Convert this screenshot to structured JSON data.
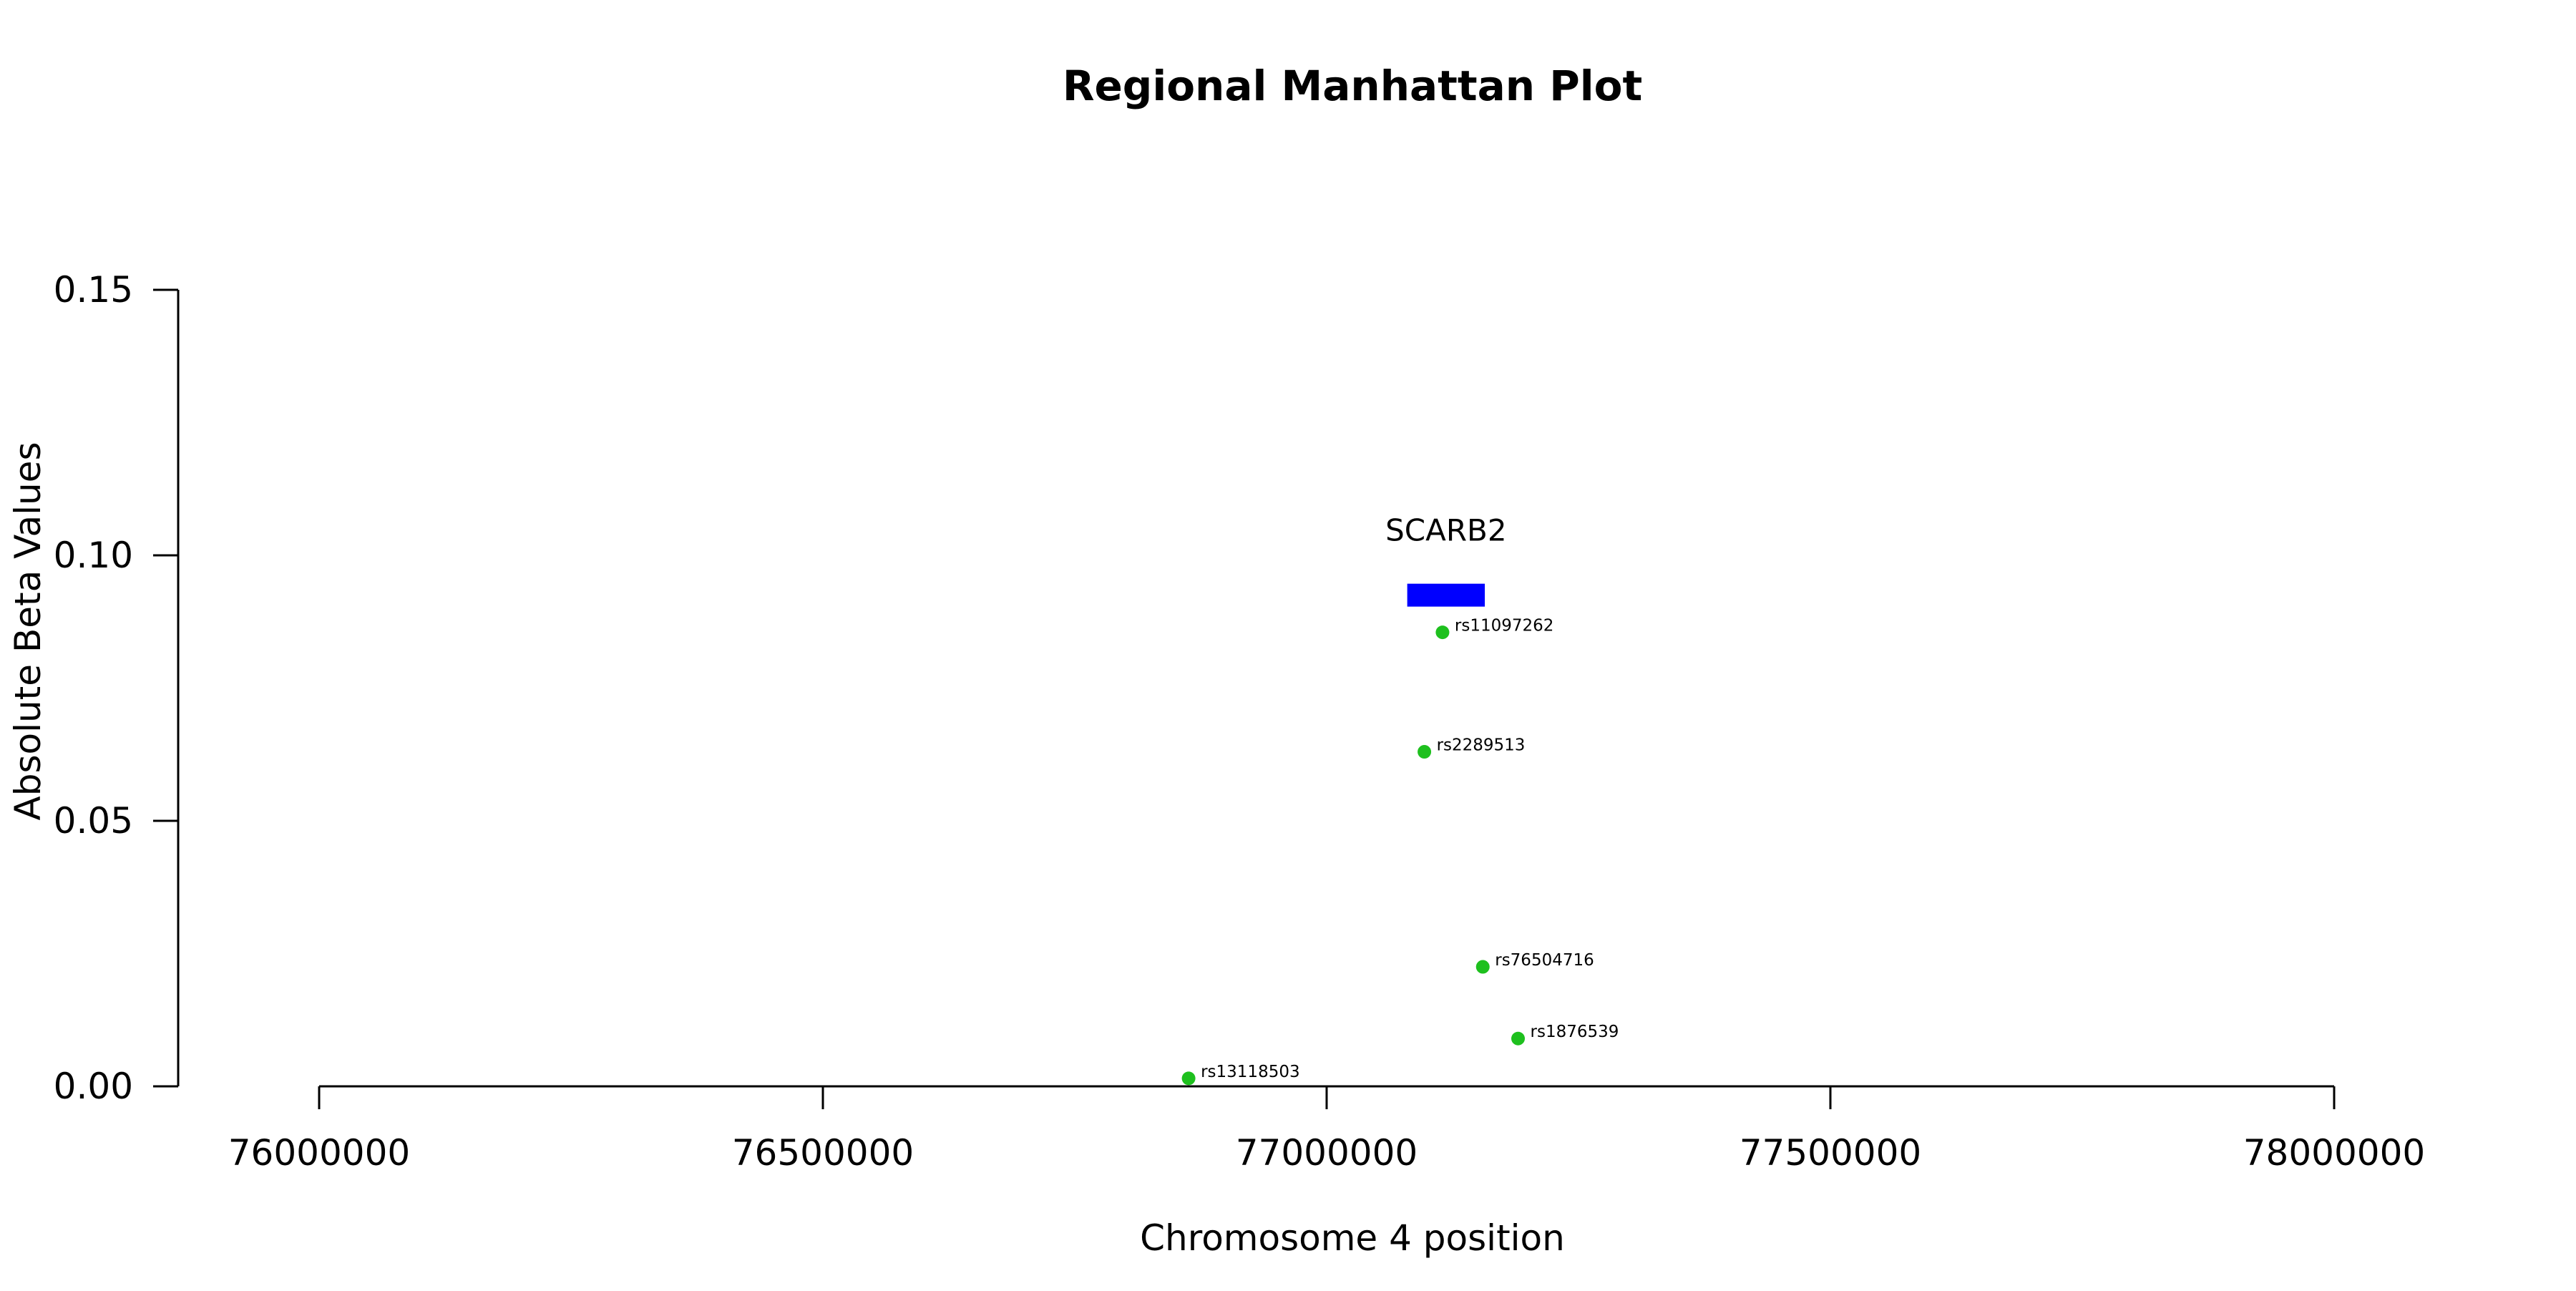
{
  "chart_data": {
    "type": "scatter",
    "title": "Regional Manhattan Plot",
    "xlabel": "Chromosome 4 position",
    "ylabel": "Absolute Beta Values",
    "xlim": [
      76000000,
      78000000
    ],
    "ylim": [
      0,
      0.15
    ],
    "x_ticks": [
      76000000,
      76500000,
      77000000,
      77500000,
      78000000
    ],
    "y_ticks": [
      0.0,
      0.05,
      0.1,
      0.15
    ],
    "x_tick_labels": [
      "76000000",
      "76500000",
      "77000000",
      "77500000",
      "78000000"
    ],
    "y_tick_labels": [
      "0.00",
      "0.05",
      "0.10",
      "0.15"
    ],
    "grid": false,
    "point_color": "#1ec01e",
    "points": [
      {
        "label": "rs11097262",
        "x": 77115000,
        "y": 0.0855
      },
      {
        "label": "rs2289513",
        "x": 77097000,
        "y": 0.063
      },
      {
        "label": "rs76504716",
        "x": 77155000,
        "y": 0.0225
      },
      {
        "label": "rs1876539",
        "x": 77190000,
        "y": 0.009
      },
      {
        "label": "rs13118503",
        "x": 76863000,
        "y": 0.0015
      }
    ],
    "genes": [
      {
        "name": "SCARB2",
        "start": 77080000,
        "end": 77157000,
        "y": 0.0925,
        "color": "#0000ff"
      }
    ]
  }
}
